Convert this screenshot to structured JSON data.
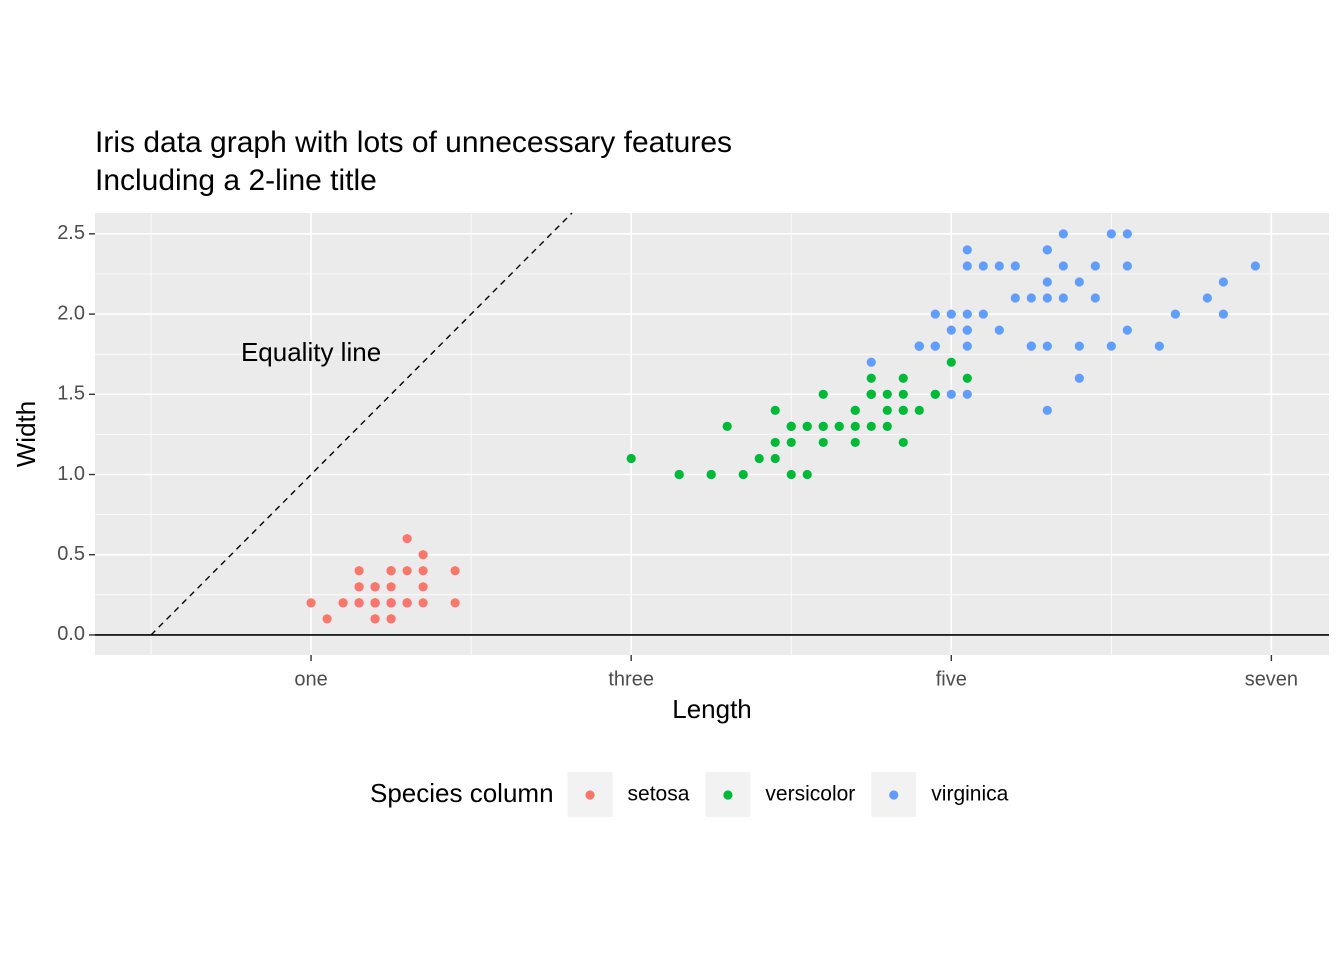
{
  "chart_data": {
    "type": "scatter",
    "title": [
      "Iris data graph with lots of unnecessary features",
      "Including a 2-line title"
    ],
    "x_label": "Length",
    "y_label": "Width",
    "legend_title": "Species column",
    "legend_position": "bottom",
    "xlim": [
      -0.35,
      7.36
    ],
    "ylim": [
      -0.125,
      2.63
    ],
    "xticks": [
      {
        "value": 1,
        "label": "one"
      },
      {
        "value": 3,
        "label": "three"
      },
      {
        "value": 5,
        "label": "five"
      },
      {
        "value": 7,
        "label": "seven"
      }
    ],
    "yticks": [
      {
        "value": 0,
        "label": "0.0"
      },
      {
        "value": 0.5,
        "label": "0.5"
      },
      {
        "value": 1,
        "label": "1.0"
      },
      {
        "value": 1.5,
        "label": "1.5"
      },
      {
        "value": 2,
        "label": "2.0"
      },
      {
        "value": 2.5,
        "label": "2.5"
      }
    ],
    "x_minor_ticks": [
      0,
      2,
      4,
      6
    ],
    "y_minor_ticks": [
      0.25,
      0.75,
      1.25,
      1.75,
      2.25
    ],
    "grid": true,
    "hline": 0,
    "reference_line": {
      "slope": 1,
      "intercept": 0,
      "from_x": 0,
      "style": "dashed"
    },
    "annotation": {
      "text": "Equality line",
      "x": 1,
      "y": 1.75
    },
    "series": [
      {
        "name": "setosa",
        "color": "#F8766D",
        "x": [
          1.4,
          1.4,
          1.3,
          1.5,
          1.4,
          1.7,
          1.4,
          1.5,
          1.4,
          1.5,
          1.5,
          1.6,
          1.4,
          1.1,
          1.2,
          1.5,
          1.3,
          1.4,
          1.7,
          1.5,
          1.7,
          1.5,
          1.0,
          1.7,
          1.9,
          1.6,
          1.6,
          1.5,
          1.4,
          1.6,
          1.6,
          1.5,
          1.5,
          1.4,
          1.5,
          1.2,
          1.3,
          1.4,
          1.3,
          1.5,
          1.3,
          1.3,
          1.3,
          1.6,
          1.9,
          1.4,
          1.6,
          1.4,
          1.5,
          1.4
        ],
        "values": [
          0.2,
          0.2,
          0.2,
          0.2,
          0.2,
          0.4,
          0.3,
          0.2,
          0.2,
          0.1,
          0.2,
          0.2,
          0.1,
          0.1,
          0.2,
          0.4,
          0.4,
          0.3,
          0.3,
          0.3,
          0.2,
          0.4,
          0.2,
          0.5,
          0.2,
          0.2,
          0.4,
          0.2,
          0.2,
          0.2,
          0.2,
          0.4,
          0.1,
          0.2,
          0.2,
          0.2,
          0.2,
          0.1,
          0.2,
          0.2,
          0.3,
          0.3,
          0.2,
          0.6,
          0.4,
          0.3,
          0.2,
          0.2,
          0.2,
          0.2
        ]
      },
      {
        "name": "versicolor",
        "color": "#00BA38",
        "x": [
          4.7,
          4.5,
          4.9,
          4.0,
          4.6,
          4.5,
          4.7,
          3.3,
          4.6,
          3.9,
          3.5,
          4.2,
          4.0,
          4.7,
          3.6,
          4.4,
          4.5,
          4.1,
          4.5,
          3.9,
          4.8,
          4.0,
          4.9,
          4.7,
          4.3,
          4.4,
          4.8,
          5.0,
          4.5,
          3.5,
          3.8,
          3.7,
          3.9,
          5.1,
          4.5,
          4.5,
          4.7,
          4.4,
          4.1,
          4.0,
          4.4,
          4.6,
          4.0,
          3.3,
          4.2,
          4.2,
          4.2,
          4.3,
          3.0,
          4.1
        ],
        "values": [
          1.4,
          1.5,
          1.5,
          1.3,
          1.5,
          1.3,
          1.6,
          1.0,
          1.3,
          1.4,
          1.0,
          1.5,
          1.0,
          1.4,
          1.3,
          1.4,
          1.5,
          1.0,
          1.5,
          1.1,
          1.8,
          1.3,
          1.5,
          1.2,
          1.3,
          1.4,
          1.4,
          1.7,
          1.5,
          1.0,
          1.1,
          1.0,
          1.2,
          1.6,
          1.5,
          1.6,
          1.5,
          1.3,
          1.3,
          1.3,
          1.2,
          1.4,
          1.2,
          1.0,
          1.3,
          1.2,
          1.3,
          1.3,
          1.1,
          1.3
        ]
      },
      {
        "name": "virginica",
        "color": "#619CFF",
        "x": [
          6.0,
          5.1,
          5.9,
          5.6,
          5.8,
          6.6,
          4.5,
          6.3,
          5.8,
          6.1,
          5.1,
          5.3,
          5.5,
          5.0,
          5.1,
          5.3,
          5.5,
          6.7,
          6.9,
          5.0,
          5.7,
          4.9,
          6.7,
          4.9,
          5.7,
          6.0,
          4.8,
          4.9,
          5.6,
          5.8,
          6.1,
          6.4,
          5.6,
          5.1,
          5.6,
          6.1,
          5.6,
          5.5,
          4.8,
          5.4,
          5.6,
          5.1,
          5.1,
          5.9,
          5.7,
          5.2,
          5.0,
          5.2,
          5.4,
          5.1
        ],
        "values": [
          2.5,
          1.9,
          2.1,
          1.8,
          2.2,
          2.1,
          1.7,
          1.8,
          1.8,
          2.5,
          2.0,
          1.9,
          2.1,
          2.0,
          2.4,
          2.3,
          1.8,
          2.2,
          2.3,
          1.5,
          2.3,
          2.0,
          2.0,
          1.8,
          2.1,
          1.8,
          1.8,
          1.8,
          2.1,
          1.6,
          1.9,
          2.0,
          2.2,
          1.5,
          1.4,
          2.3,
          2.4,
          1.8,
          1.8,
          2.1,
          2.4,
          2.3,
          1.9,
          2.3,
          2.5,
          2.3,
          1.9,
          2.0,
          2.3,
          1.8
        ]
      }
    ]
  }
}
